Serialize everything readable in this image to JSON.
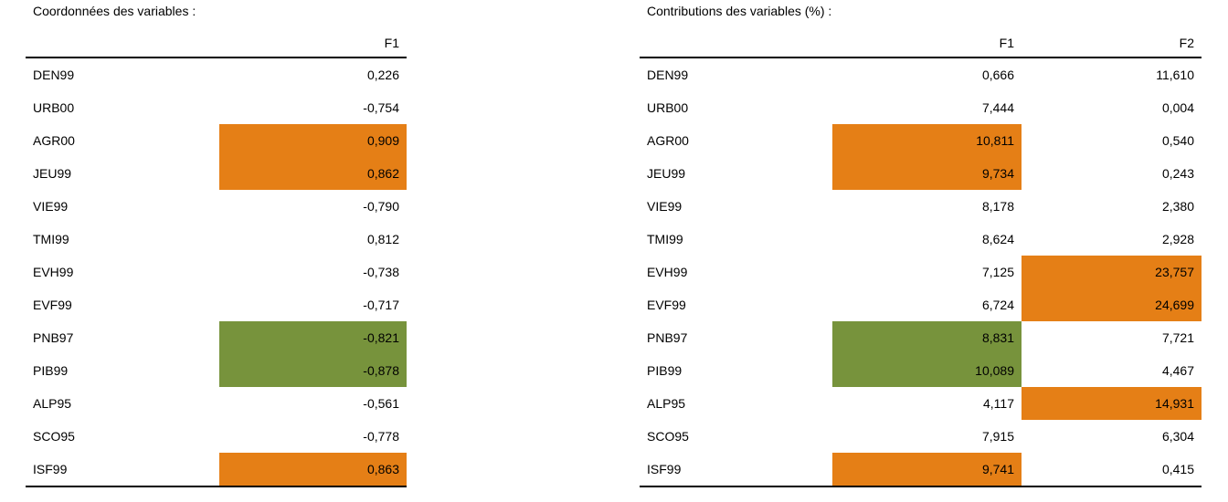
{
  "left": {
    "caption": "Coordonnées des variables :",
    "headers": [
      "F1"
    ],
    "rows": [
      {
        "label": "DEN99",
        "values": [
          "0,226"
        ],
        "hl": [
          ""
        ]
      },
      {
        "label": "URB00",
        "values": [
          "-0,754"
        ],
        "hl": [
          ""
        ]
      },
      {
        "label": "AGR00",
        "values": [
          "0,909"
        ],
        "hl": [
          "orange"
        ]
      },
      {
        "label": "JEU99",
        "values": [
          "0,862"
        ],
        "hl": [
          "orange"
        ]
      },
      {
        "label": "VIE99",
        "values": [
          "-0,790"
        ],
        "hl": [
          ""
        ]
      },
      {
        "label": "TMI99",
        "values": [
          "0,812"
        ],
        "hl": [
          ""
        ]
      },
      {
        "label": "EVH99",
        "values": [
          "-0,738"
        ],
        "hl": [
          ""
        ]
      },
      {
        "label": "EVF99",
        "values": [
          "-0,717"
        ],
        "hl": [
          ""
        ]
      },
      {
        "label": "PNB97",
        "values": [
          "-0,821"
        ],
        "hl": [
          "green"
        ]
      },
      {
        "label": "PIB99",
        "values": [
          "-0,878"
        ],
        "hl": [
          "green"
        ]
      },
      {
        "label": "ALP95",
        "values": [
          "-0,561"
        ],
        "hl": [
          ""
        ]
      },
      {
        "label": "SCO95",
        "values": [
          "-0,778"
        ],
        "hl": [
          ""
        ]
      },
      {
        "label": "ISF99",
        "values": [
          "0,863"
        ],
        "hl": [
          "orange"
        ]
      }
    ]
  },
  "right": {
    "caption": "Contributions des variables (%) :",
    "headers": [
      "F1",
      "F2"
    ],
    "rows": [
      {
        "label": "DEN99",
        "values": [
          "0,666",
          "11,610"
        ],
        "hl": [
          "",
          ""
        ]
      },
      {
        "label": "URB00",
        "values": [
          "7,444",
          "0,004"
        ],
        "hl": [
          "",
          ""
        ]
      },
      {
        "label": "AGR00",
        "values": [
          "10,811",
          "0,540"
        ],
        "hl": [
          "orange",
          ""
        ]
      },
      {
        "label": "JEU99",
        "values": [
          "9,734",
          "0,243"
        ],
        "hl": [
          "orange",
          ""
        ]
      },
      {
        "label": "VIE99",
        "values": [
          "8,178",
          "2,380"
        ],
        "hl": [
          "",
          ""
        ]
      },
      {
        "label": "TMI99",
        "values": [
          "8,624",
          "2,928"
        ],
        "hl": [
          "",
          ""
        ]
      },
      {
        "label": "EVH99",
        "values": [
          "7,125",
          "23,757"
        ],
        "hl": [
          "",
          "orange"
        ]
      },
      {
        "label": "EVF99",
        "values": [
          "6,724",
          "24,699"
        ],
        "hl": [
          "",
          "orange"
        ]
      },
      {
        "label": "PNB97",
        "values": [
          "8,831",
          "7,721"
        ],
        "hl": [
          "green",
          ""
        ]
      },
      {
        "label": "PIB99",
        "values": [
          "10,089",
          "4,467"
        ],
        "hl": [
          "green",
          ""
        ]
      },
      {
        "label": "ALP95",
        "values": [
          "4,117",
          "14,931"
        ],
        "hl": [
          "",
          "orange"
        ]
      },
      {
        "label": "SCO95",
        "values": [
          "7,915",
          "6,304"
        ],
        "hl": [
          "",
          ""
        ]
      },
      {
        "label": "ISF99",
        "values": [
          "9,741",
          "0,415"
        ],
        "hl": [
          "orange",
          ""
        ]
      }
    ]
  },
  "colors": {
    "orange": "#e57f16",
    "green": "#77933c"
  }
}
